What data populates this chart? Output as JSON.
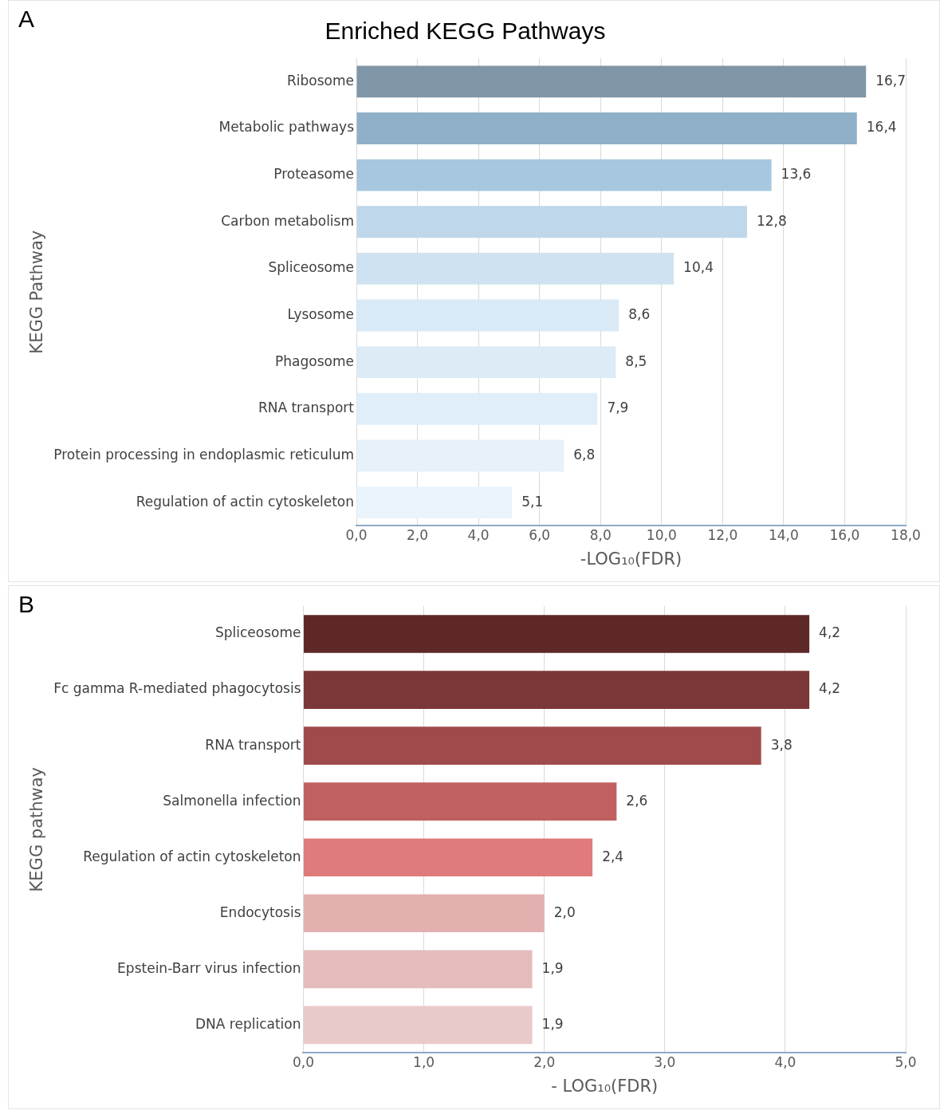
{
  "chart_data": [
    {
      "type": "bar",
      "orientation": "horizontal",
      "title": "Enriched KEGG Pathways",
      "annotations": [
        "A"
      ],
      "xlabel": "-LOG₁₀(FDR)",
      "ylabel": "KEGG Pathway",
      "grid": "x",
      "categories": [
        "Ribosome",
        "Metabolic pathways",
        "Proteasome",
        "Carbon metabolism",
        "Spliceosome",
        "Lysosome",
        "Phagosome",
        "RNA transport",
        "Protein processing in endoplasmic reticulum",
        "Regulation of actin cytoskeleton"
      ],
      "values": [
        16.7,
        16.4,
        13.6,
        12.8,
        10.4,
        8.6,
        8.5,
        7.9,
        6.8,
        5.1
      ],
      "value_labels": [
        "16,7",
        "16,4",
        "13,6",
        "12,8",
        "10,4",
        "8,6",
        "8,5",
        "7,9",
        "6,8",
        "5,1"
      ],
      "colors": [
        "#7f96a8",
        "#8fb0c8",
        "#a6c7df",
        "#bfd7ea",
        "#cfe2f1",
        "#dae9f6",
        "#ddebf7",
        "#e0eef9",
        "#e6f1fa",
        "#eaf4fc"
      ],
      "xlim": [
        0,
        18
      ],
      "xticks": [
        {
          "value": 0,
          "label": "0,0"
        },
        {
          "value": 2,
          "label": "2,0"
        },
        {
          "value": 4,
          "label": "4,0"
        },
        {
          "value": 6,
          "label": "6,0"
        },
        {
          "value": 8,
          "label": "8,0"
        },
        {
          "value": 10,
          "label": "10,0"
        },
        {
          "value": 12,
          "label": "12,0"
        },
        {
          "value": 14,
          "label": "14,0"
        },
        {
          "value": 16,
          "label": "16,0"
        },
        {
          "value": 18,
          "label": "18,0"
        }
      ]
    },
    {
      "type": "bar",
      "orientation": "horizontal",
      "annotations": [
        "B"
      ],
      "xlabel": "- LOG₁₀(FDR)",
      "ylabel": "KEGG pathway",
      "grid": "x",
      "categories": [
        "Spliceosome",
        "Fc gamma R-mediated phagocytosis",
        "RNA transport",
        "Salmonella infection",
        "Regulation of actin cytoskeleton",
        "Endocytosis",
        "Epstein-Barr virus infection",
        "DNA replication"
      ],
      "values": [
        4.2,
        4.2,
        3.8,
        2.6,
        2.4,
        2.0,
        1.9,
        1.9
      ],
      "value_labels": [
        "4,2",
        "4,2",
        "3,8",
        "2,6",
        "2,4",
        "2,0",
        "1,9",
        "1,9"
      ],
      "colors": [
        "#5e2828",
        "#7b3737",
        "#a04b4b",
        "#c06060",
        "#e07b7b",
        "#e3b0b0",
        "#e5bcbc",
        "#e9caca"
      ],
      "xlim": [
        0,
        5
      ],
      "xticks": [
        {
          "value": 0,
          "label": "0,0"
        },
        {
          "value": 1,
          "label": "1,0"
        },
        {
          "value": 2,
          "label": "2,0"
        },
        {
          "value": 3,
          "label": "3,0"
        },
        {
          "value": 4,
          "label": "4,0"
        },
        {
          "value": 5,
          "label": "5,0"
        }
      ]
    }
  ]
}
